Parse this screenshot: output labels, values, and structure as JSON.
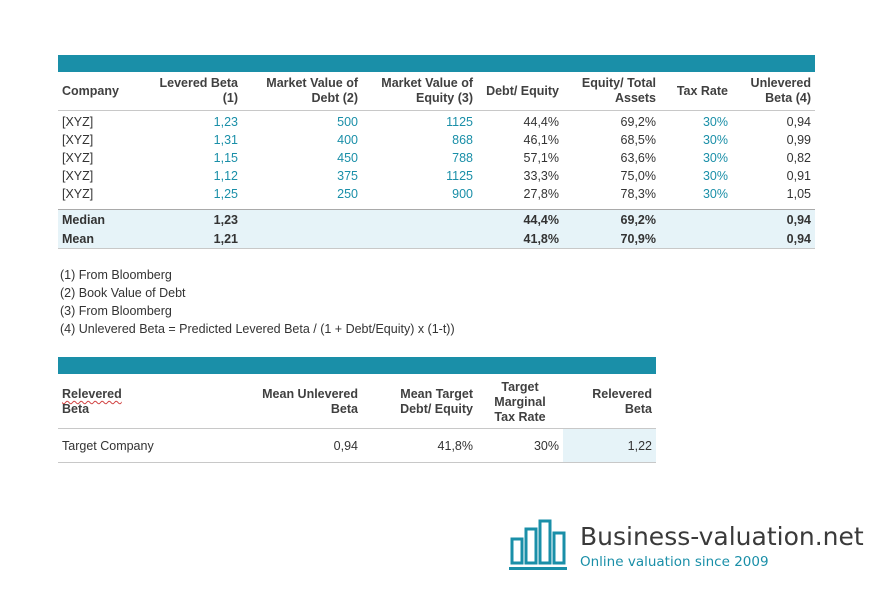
{
  "table1": {
    "headers": {
      "company": "Company",
      "levered_beta": [
        "Levered Beta",
        "(1)"
      ],
      "mv_debt": [
        "Market Value of",
        "Debt (2)"
      ],
      "mv_equity": [
        "Market Value of",
        "Equity (3)"
      ],
      "debt_equity": "Debt/ Equity",
      "equity_assets": [
        "Equity/ Total",
        "Assets"
      ],
      "tax_rate": "Tax Rate",
      "unlevered_beta": [
        "Unlevered",
        "Beta (4)"
      ]
    },
    "rows": [
      {
        "company": "[XYZ]",
        "levered_beta": "1,23",
        "mv_debt": "500",
        "mv_equity": "1125",
        "debt_equity": "44,4%",
        "equity_assets": "69,2%",
        "tax_rate": "30%",
        "unlevered_beta": "0,94"
      },
      {
        "company": "[XYZ]",
        "levered_beta": "1,31",
        "mv_debt": "400",
        "mv_equity": "868",
        "debt_equity": "46,1%",
        "equity_assets": "68,5%",
        "tax_rate": "30%",
        "unlevered_beta": "0,99"
      },
      {
        "company": "[XYZ]",
        "levered_beta": "1,15",
        "mv_debt": "450",
        "mv_equity": "788",
        "debt_equity": "57,1%",
        "equity_assets": "63,6%",
        "tax_rate": "30%",
        "unlevered_beta": "0,82"
      },
      {
        "company": "[XYZ]",
        "levered_beta": "1,12",
        "mv_debt": "375",
        "mv_equity": "1125",
        "debt_equity": "33,3%",
        "equity_assets": "75,0%",
        "tax_rate": "30%",
        "unlevered_beta": "0,91"
      },
      {
        "company": "[XYZ]",
        "levered_beta": "1,25",
        "mv_debt": "250",
        "mv_equity": "900",
        "debt_equity": "27,8%",
        "equity_assets": "78,3%",
        "tax_rate": "30%",
        "unlevered_beta": "1,05"
      }
    ],
    "median": {
      "label": "Median",
      "levered_beta": "1,23",
      "debt_equity": "44,4%",
      "equity_assets": "69,2%",
      "unlevered_beta": "0,94"
    },
    "mean": {
      "label": "Mean",
      "levered_beta": "1,21",
      "debt_equity": "41,8%",
      "equity_assets": "70,9%",
      "unlevered_beta": "0,94"
    }
  },
  "notes": [
    "(1) From Bloomberg",
    "(2) Book Value of Debt",
    "(3) From Bloomberg",
    "(4) Unlevered Beta = Predicted Levered Beta / (1 + Debt/Equity) x (1-t))"
  ],
  "table2": {
    "headers": {
      "relevered": [
        "Relevered",
        "Beta"
      ],
      "mean_unlevered": [
        "Mean Unlevered",
        "Beta"
      ],
      "mean_target": [
        "Mean Target",
        "Debt/ Equity"
      ],
      "target_tax": [
        "Target",
        "Marginal",
        "Tax Rate"
      ],
      "relevered_beta": [
        "Relevered",
        "Beta"
      ]
    },
    "row": {
      "label": "Target Company",
      "mean_unlevered": "0,94",
      "mean_target": "41,8%",
      "target_tax": "30%",
      "relevered_beta": "1,22"
    }
  },
  "logo": {
    "brand": "Business-valuation.net",
    "tagline": "Online valuation since 2009",
    "accent_color": "#1a8fa8",
    "icon": "bar-chart-icon"
  }
}
